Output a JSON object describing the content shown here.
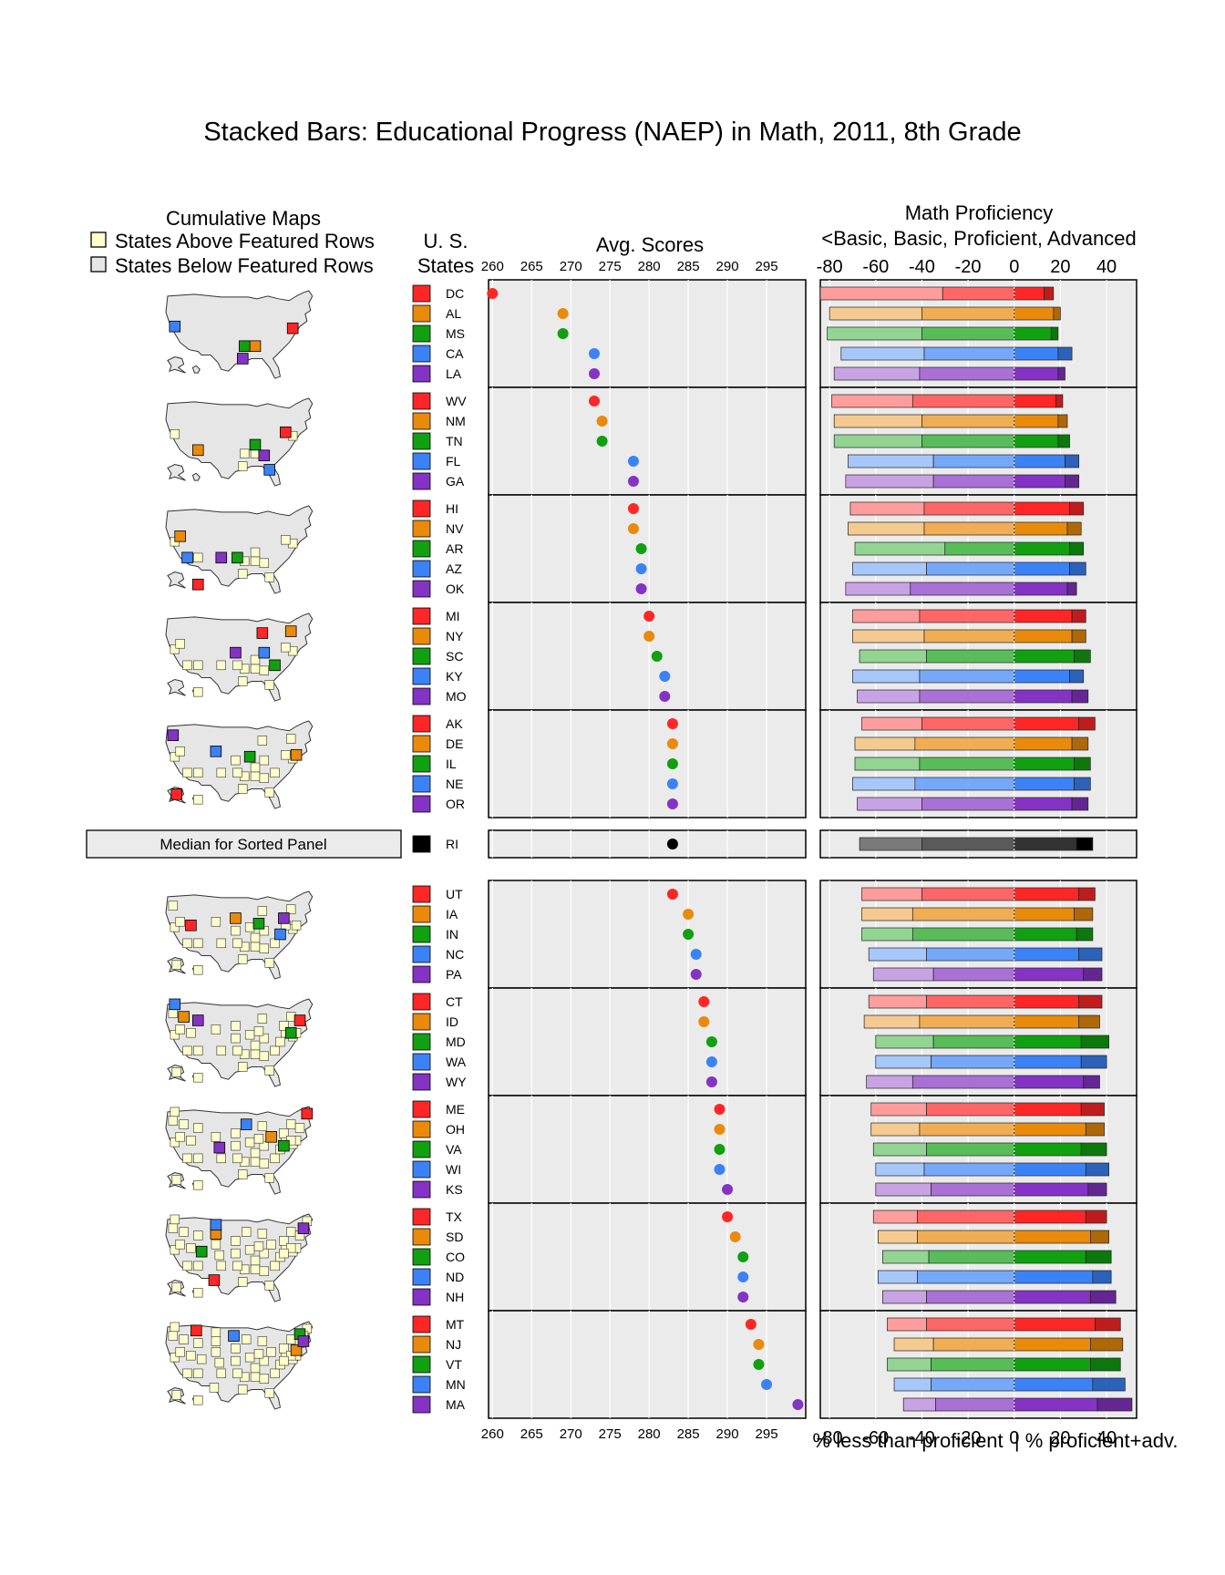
{
  "chart_data": {
    "type": "bar",
    "title": "Stacked Bars: Educational Progress (NAEP) in Math, 2011, 8th Grade",
    "maps_header": {
      "title": "Cumulative Maps",
      "legend_above": "States Above Featured Rows",
      "legend_below": "States Below Featured Rows"
    },
    "states_header": {
      "line1": "U. S.",
      "line2": "States"
    },
    "dot_panel": {
      "title": "Avg. Scores",
      "xlim": [
        259.5,
        300
      ],
      "ticks": [
        260,
        265,
        270,
        275,
        280,
        285,
        290,
        295
      ],
      "tick_labels": [
        "260",
        "265",
        "270",
        "275",
        "280",
        "285",
        "290",
        "295"
      ]
    },
    "bar_panel": {
      "title1": "Math Proficiency",
      "title2": "<Basic, Basic, Proficient, Advanced",
      "xlim": [
        -84,
        53
      ],
      "ticks": [
        -80,
        -60,
        -40,
        -20,
        0,
        20,
        40
      ],
      "tick_labels": [
        "-80",
        "-60",
        "-40",
        "-20",
        "0",
        "20",
        "40"
      ],
      "xlabel": "% less than proficient  | % proficient+adv."
    },
    "median_label": "Median for Sorted Panel",
    "group_colors": [
      "#ff2626",
      "#e98a0b",
      "#10a010",
      "#3b82f6",
      "#8433c4"
    ],
    "median_color": "#000000",
    "map_above_color": "#ffffcc",
    "map_below_color": "#e6e6e6",
    "panel_bg": "#ebebeb",
    "groups": [
      {
        "states": [
          {
            "abbr": "DC",
            "score": 260,
            "below_basic": 53,
            "basic": 31,
            "proficient": 13,
            "advanced": 4
          },
          {
            "abbr": "AL",
            "score": 269,
            "below_basic": 40,
            "basic": 40,
            "proficient": 17,
            "advanced": 3
          },
          {
            "abbr": "MS",
            "score": 269,
            "below_basic": 41,
            "basic": 40,
            "proficient": 16,
            "advanced": 3
          },
          {
            "abbr": "CA",
            "score": 273,
            "below_basic": 36,
            "basic": 39,
            "proficient": 19,
            "advanced": 6
          },
          {
            "abbr": "LA",
            "score": 273,
            "below_basic": 37,
            "basic": 41,
            "proficient": 19,
            "advanced": 3
          }
        ]
      },
      {
        "states": [
          {
            "abbr": "WV",
            "score": 273,
            "below_basic": 35,
            "basic": 44,
            "proficient": 18,
            "advanced": 3
          },
          {
            "abbr": "NM",
            "score": 274,
            "below_basic": 38,
            "basic": 40,
            "proficient": 19,
            "advanced": 4
          },
          {
            "abbr": "TN",
            "score": 274,
            "below_basic": 38,
            "basic": 40,
            "proficient": 19,
            "advanced": 5
          },
          {
            "abbr": "FL",
            "score": 278,
            "below_basic": 37,
            "basic": 35,
            "proficient": 22,
            "advanced": 6
          },
          {
            "abbr": "GA",
            "score": 278,
            "below_basic": 38,
            "basic": 35,
            "proficient": 22,
            "advanced": 6
          }
        ]
      },
      {
        "states": [
          {
            "abbr": "HI",
            "score": 278,
            "below_basic": 32,
            "basic": 39,
            "proficient": 24,
            "advanced": 6
          },
          {
            "abbr": "NV",
            "score": 278,
            "below_basic": 33,
            "basic": 39,
            "proficient": 23,
            "advanced": 6
          },
          {
            "abbr": "AR",
            "score": 279,
            "below_basic": 39,
            "basic": 30,
            "proficient": 24,
            "advanced": 6
          },
          {
            "abbr": "AZ",
            "score": 279,
            "below_basic": 32,
            "basic": 38,
            "proficient": 24,
            "advanced": 7
          },
          {
            "abbr": "OK",
            "score": 279,
            "below_basic": 28,
            "basic": 45,
            "proficient": 23,
            "advanced": 4
          }
        ]
      },
      {
        "states": [
          {
            "abbr": "MI",
            "score": 280,
            "below_basic": 29,
            "basic": 41,
            "proficient": 25,
            "advanced": 6
          },
          {
            "abbr": "NY",
            "score": 280,
            "below_basic": 31,
            "basic": 39,
            "proficient": 25,
            "advanced": 6
          },
          {
            "abbr": "SC",
            "score": 281,
            "below_basic": 29,
            "basic": 38,
            "proficient": 26,
            "advanced": 7
          },
          {
            "abbr": "KY",
            "score": 282,
            "below_basic": 29,
            "basic": 41,
            "proficient": 24,
            "advanced": 6
          },
          {
            "abbr": "MO",
            "score": 282,
            "below_basic": 27,
            "basic": 41,
            "proficient": 25,
            "advanced": 7
          }
        ]
      },
      {
        "states": [
          {
            "abbr": "AK",
            "score": 283,
            "below_basic": 26,
            "basic": 40,
            "proficient": 28,
            "advanced": 7
          },
          {
            "abbr": "DE",
            "score": 283,
            "below_basic": 26,
            "basic": 43,
            "proficient": 25,
            "advanced": 7
          },
          {
            "abbr": "IL",
            "score": 283,
            "below_basic": 28,
            "basic": 41,
            "proficient": 26,
            "advanced": 7
          },
          {
            "abbr": "NE",
            "score": 283,
            "below_basic": 27,
            "basic": 43,
            "proficient": 26,
            "advanced": 7
          },
          {
            "abbr": "OR",
            "score": 283,
            "below_basic": 28,
            "basic": 40,
            "proficient": 25,
            "advanced": 7
          }
        ]
      },
      {
        "median": true,
        "states": [
          {
            "abbr": "RI",
            "score": 283,
            "below_basic": 27,
            "basic": 40,
            "proficient": 27,
            "advanced": 7
          }
        ]
      },
      {
        "states": [
          {
            "abbr": "UT",
            "score": 283,
            "below_basic": 26,
            "basic": 40,
            "proficient": 28,
            "advanced": 7
          },
          {
            "abbr": "IA",
            "score": 285,
            "below_basic": 22,
            "basic": 44,
            "proficient": 26,
            "advanced": 8
          },
          {
            "abbr": "IN",
            "score": 285,
            "below_basic": 22,
            "basic": 44,
            "proficient": 27,
            "advanced": 7
          },
          {
            "abbr": "NC",
            "score": 286,
            "below_basic": 25,
            "basic": 38,
            "proficient": 28,
            "advanced": 10
          },
          {
            "abbr": "PA",
            "score": 286,
            "below_basic": 26,
            "basic": 35,
            "proficient": 30,
            "advanced": 8
          }
        ]
      },
      {
        "states": [
          {
            "abbr": "CT",
            "score": 287,
            "below_basic": 25,
            "basic": 38,
            "proficient": 28,
            "advanced": 10
          },
          {
            "abbr": "ID",
            "score": 287,
            "below_basic": 24,
            "basic": 41,
            "proficient": 28,
            "advanced": 9
          },
          {
            "abbr": "MD",
            "score": 288,
            "below_basic": 25,
            "basic": 35,
            "proficient": 29,
            "advanced": 12
          },
          {
            "abbr": "WA",
            "score": 288,
            "below_basic": 24,
            "basic": 36,
            "proficient": 29,
            "advanced": 11
          },
          {
            "abbr": "WY",
            "score": 288,
            "below_basic": 20,
            "basic": 44,
            "proficient": 30,
            "advanced": 7
          }
        ]
      },
      {
        "states": [
          {
            "abbr": "ME",
            "score": 289,
            "below_basic": 24,
            "basic": 38,
            "proficient": 29,
            "advanced": 10
          },
          {
            "abbr": "OH",
            "score": 289,
            "below_basic": 21,
            "basic": 41,
            "proficient": 31,
            "advanced": 8
          },
          {
            "abbr": "VA",
            "score": 289,
            "below_basic": 23,
            "basic": 38,
            "proficient": 29,
            "advanced": 11
          },
          {
            "abbr": "WI",
            "score": 289,
            "below_basic": 21,
            "basic": 39,
            "proficient": 31,
            "advanced": 10
          },
          {
            "abbr": "KS",
            "score": 290,
            "below_basic": 24,
            "basic": 36,
            "proficient": 32,
            "advanced": 8
          }
        ]
      },
      {
        "states": [
          {
            "abbr": "TX",
            "score": 290,
            "below_basic": 19,
            "basic": 42,
            "proficient": 31,
            "advanced": 9
          },
          {
            "abbr": "SD",
            "score": 291,
            "below_basic": 17,
            "basic": 42,
            "proficient": 33,
            "advanced": 8
          },
          {
            "abbr": "CO",
            "score": 292,
            "below_basic": 20,
            "basic": 37,
            "proficient": 31,
            "advanced": 11
          },
          {
            "abbr": "ND",
            "score": 292,
            "below_basic": 17,
            "basic": 42,
            "proficient": 34,
            "advanced": 8
          },
          {
            "abbr": "NH",
            "score": 292,
            "below_basic": 19,
            "basic": 38,
            "proficient": 33,
            "advanced": 11
          }
        ]
      },
      {
        "states": [
          {
            "abbr": "MT",
            "score": 293,
            "below_basic": 17,
            "basic": 38,
            "proficient": 35,
            "advanced": 11
          },
          {
            "abbr": "NJ",
            "score": 294,
            "below_basic": 17,
            "basic": 35,
            "proficient": 33,
            "advanced": 14
          },
          {
            "abbr": "VT",
            "score": 294,
            "below_basic": 19,
            "basic": 36,
            "proficient": 33,
            "advanced": 13
          },
          {
            "abbr": "MN",
            "score": 295,
            "below_basic": 16,
            "basic": 36,
            "proficient": 34,
            "advanced": 14
          },
          {
            "abbr": "MA",
            "score": 299,
            "below_basic": 14,
            "basic": 34,
            "proficient": 36,
            "advanced": 15
          }
        ]
      }
    ]
  }
}
